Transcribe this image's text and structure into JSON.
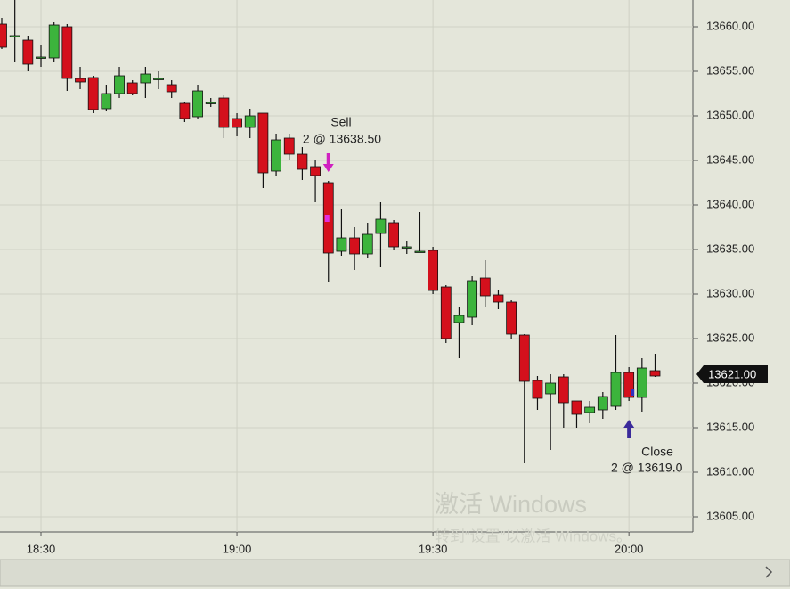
{
  "chart_data": {
    "type": "candlestick",
    "categories": [
      null,
      null,
      null,
      "18:30",
      null,
      null,
      null,
      null,
      null,
      null,
      null,
      null,
      null,
      null,
      null,
      null,
      null,
      null,
      "19:00",
      null,
      null,
      null,
      null,
      null,
      null,
      null,
      null,
      null,
      null,
      null,
      null,
      null,
      null,
      "19:30",
      null,
      null,
      null,
      null,
      null,
      null,
      null,
      null,
      null,
      null,
      null,
      null,
      null,
      null,
      "20:00",
      null,
      null
    ],
    "open": [
      13660.3,
      13659,
      13658.5,
      13656.6,
      13656.5,
      13660,
      13654.2,
      13654.3,
      13650.8,
      13652.5,
      13653.7,
      13653.7,
      13654.2,
      13653.5,
      13651.4,
      13649.9,
      13651.5,
      13652,
      13649.7,
      13648.7,
      13650.3,
      13643.8,
      13647.5,
      13645.7,
      13644.3,
      13642.5,
      13634.8,
      13636.3,
      13634.5,
      13636.8,
      13638,
      13635.3,
      13634.8,
      13634.9,
      13630.8,
      13626.8,
      13627.4,
      13631.8,
      13629.9,
      13629.1,
      13625.4,
      13620.3,
      13618.8,
      13620.7,
      13618,
      13616.7,
      13617,
      13617.4,
      13621.2,
      13618.4,
      13621.4
    ],
    "high": [
      13661,
      13663,
      13659,
      13658,
      13660.5,
      13660.3,
      13655.5,
      13654.5,
      13653.5,
      13655.5,
      13654,
      13655.5,
      13655,
      13654,
      13651.5,
      13653.5,
      13652,
      13652.3,
      13650.3,
      13650.8,
      13650.3,
      13648,
      13648,
      13646.5,
      13645,
      13642.7,
      13639.5,
      13637.5,
      13638,
      13640.3,
      13638.3,
      13636,
      13639.2,
      13635.3,
      13631,
      13628.5,
      13632,
      13633.8,
      13630.5,
      13629.3,
      13625.5,
      13620.8,
      13621,
      13621,
      13618,
      13618,
      13619,
      13625.4,
      13621.8,
      13622.8,
      13623.3
    ],
    "low": [
      13657.5,
      13656,
      13655,
      13655.5,
      13656,
      13652.8,
      13653,
      13650.3,
      13650.5,
      13652,
      13652.3,
      13652,
      13653,
      13652,
      13649.3,
      13649.7,
      13651,
      13647.5,
      13647.7,
      13647.5,
      13641.9,
      13643.3,
      13645,
      13642.8,
      13640.3,
      13631.4,
      13634.3,
      13632.7,
      13634,
      13633,
      13635,
      13634.5,
      13634.8,
      13630,
      13624.5,
      13622.8,
      13626.5,
      13628.5,
      13628.3,
      13625,
      13611,
      13617,
      13612.5,
      13615,
      13615,
      13615.5,
      13616,
      13617,
      13618,
      13616.8,
      13620.7
    ],
    "close": [
      13657.7,
      13659,
      13655.8,
      13656.6,
      13660.2,
      13654.2,
      13653.8,
      13650.7,
      13652.5,
      13654.5,
      13652.5,
      13654.7,
      13654.2,
      13652.7,
      13649.7,
      13652.8,
      13651.5,
      13648.7,
      13648.7,
      13650,
      13643.6,
      13647.3,
      13645.7,
      13644,
      13643.3,
      13634.6,
      13636.3,
      13634.5,
      13636.7,
      13638.4,
      13635.3,
      13635.3,
      13634.8,
      13630.4,
      13625,
      13627.6,
      13631.5,
      13629.8,
      13629.1,
      13625.5,
      13620.2,
      13618.3,
      13620,
      13617.8,
      13616.5,
      13617.3,
      13618.5,
      13621.2,
      13618.4,
      13621.7,
      13620.8
    ],
    "up_color": "#3cb43c",
    "down_color": "#d4101c",
    "ylim": [
      13603.3,
      13663
    ],
    "yticks": [
      {
        "value": 13605,
        "label": "13605.00"
      },
      {
        "value": 13610,
        "label": "13610.00"
      },
      {
        "value": 13615,
        "label": "13615.00"
      },
      {
        "value": 13620,
        "label": "13620.00"
      },
      {
        "value": 13625,
        "label": "13625.00"
      },
      {
        "value": 13630,
        "label": "13630.00"
      },
      {
        "value": 13635,
        "label": "13635.00"
      },
      {
        "value": 13640,
        "label": "13640.00"
      },
      {
        "value": 13645,
        "label": "13645.00"
      },
      {
        "value": 13650,
        "label": "13650.00"
      },
      {
        "value": 13655,
        "label": "13655.00"
      },
      {
        "value": 13660,
        "label": "13660.00"
      }
    ],
    "grid": true,
    "last_price": {
      "value": 13621,
      "label": "13621.00"
    },
    "sell": {
      "text": "Sell",
      "detail": "2 @ 13638.50",
      "price": 13638.5
    },
    "close_order": {
      "text": "Close",
      "detail": "2 @ 13619.0",
      "price": 13619
    },
    "watermark": [
      "激活 Windows",
      "转到“设置”以激活 Windows。"
    ]
  }
}
